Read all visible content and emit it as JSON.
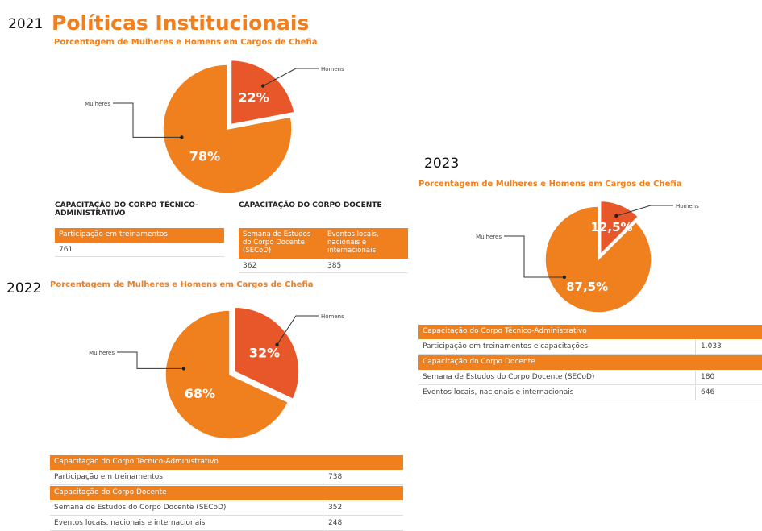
{
  "title": "Políticas Institucionais",
  "chart_data": [
    {
      "type": "pie",
      "year": "2021",
      "title": "Porcentagem de Mulheres e Homens em Cargos de Chefia",
      "categories": [
        "Mulheres",
        "Homens"
      ],
      "values": [
        78,
        22
      ],
      "value_labels": [
        "78%",
        "22%"
      ],
      "colors": [
        "#f07f1e",
        "#e8572a"
      ]
    },
    {
      "type": "pie",
      "year": "2022",
      "title": "Porcentagem de Mulheres e Homens em Cargos de Chefia",
      "categories": [
        "Mulheres",
        "Homens"
      ],
      "values": [
        68,
        32
      ],
      "value_labels": [
        "68%",
        "32%"
      ],
      "colors": [
        "#f07f1e",
        "#e8572a"
      ]
    },
    {
      "type": "pie",
      "year": "2023",
      "title": "Porcentagem de Mulheres e Homens em Cargos de Chefia",
      "categories": [
        "Mulheres",
        "Homens"
      ],
      "values": [
        87.5,
        12.5
      ],
      "value_labels": [
        "87,5%",
        "12,5%"
      ],
      "colors": [
        "#f07f1e",
        "#e8572a"
      ]
    }
  ],
  "tables": [
    {
      "blocks": [
        {
          "heading": "CAPACITAÇÃO DO CORPO TÉCNICO-ADMINISTRATIVO",
          "columns": [
            "Participação em treinamentos"
          ],
          "values": [
            761
          ]
        },
        {
          "heading": "CAPACITAÇÃO DO CORPO DOCENTE",
          "columns": [
            "Semana de Estudos do Corpo Docente (SECoD)",
            "Eventos locais, nacionais e internacionais"
          ],
          "values": [
            362,
            385
          ]
        }
      ]
    },
    {
      "sections": [
        {
          "heading": "Capacitação do Corpo Técnico-Administrativo",
          "rows": [
            [
              "Participação em treinamentos",
              738
            ]
          ]
        },
        {
          "heading": "Capacitação do Corpo Docente",
          "rows": [
            [
              "Semana de Estudos do Corpo Docente (SECoD)",
              352
            ],
            [
              "Eventos locais, nacionais e internacionais",
              248
            ]
          ]
        }
      ]
    },
    {
      "sections": [
        {
          "heading": "Capacitação do Corpo Técnico-Administrativo",
          "rows": [
            [
              "Participação em treinamentos e capacitações",
              "1.033"
            ]
          ]
        },
        {
          "heading": "Capacitação do Corpo Docente",
          "rows": [
            [
              "Semana de Estudos do Corpo Docente (SECoD)",
              180
            ],
            [
              "Eventos locais, nacionais e internacionais",
              646
            ]
          ]
        }
      ]
    }
  ]
}
